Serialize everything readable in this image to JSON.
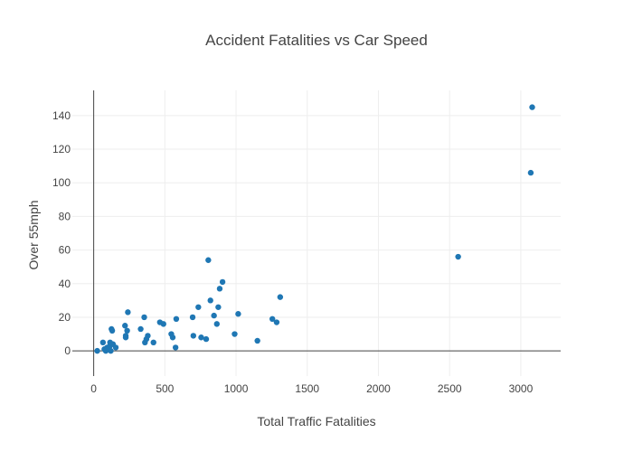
{
  "chart_data": {
    "type": "scatter",
    "title": "Accident Fatalities vs Car Speed",
    "xlabel": "Total Traffic Fatalities",
    "ylabel": "Over 55mph",
    "xlim": [
      -150,
      3280
    ],
    "ylim": [
      -15,
      155
    ],
    "xticks": [
      0,
      500,
      1000,
      1500,
      2000,
      2500,
      3000
    ],
    "yticks": [
      0,
      20,
      40,
      60,
      80,
      100,
      120,
      140
    ],
    "grid": true,
    "color": "#1f77b4",
    "points": [
      {
        "x": 25,
        "y": 0
      },
      {
        "x": 65,
        "y": 5
      },
      {
        "x": 75,
        "y": 1
      },
      {
        "x": 85,
        "y": 0
      },
      {
        "x": 95,
        "y": 2
      },
      {
        "x": 105,
        "y": 1
      },
      {
        "x": 115,
        "y": 5
      },
      {
        "x": 115,
        "y": 3
      },
      {
        "x": 120,
        "y": 0
      },
      {
        "x": 125,
        "y": 13
      },
      {
        "x": 130,
        "y": 12
      },
      {
        "x": 135,
        "y": 4
      },
      {
        "x": 155,
        "y": 2
      },
      {
        "x": 220,
        "y": 15
      },
      {
        "x": 225,
        "y": 9
      },
      {
        "x": 225,
        "y": 8
      },
      {
        "x": 235,
        "y": 12
      },
      {
        "x": 240,
        "y": 23
      },
      {
        "x": 330,
        "y": 13
      },
      {
        "x": 355,
        "y": 20
      },
      {
        "x": 360,
        "y": 5
      },
      {
        "x": 370,
        "y": 7
      },
      {
        "x": 380,
        "y": 9
      },
      {
        "x": 420,
        "y": 5
      },
      {
        "x": 465,
        "y": 17
      },
      {
        "x": 490,
        "y": 16
      },
      {
        "x": 545,
        "y": 10
      },
      {
        "x": 555,
        "y": 8
      },
      {
        "x": 575,
        "y": 2
      },
      {
        "x": 580,
        "y": 19
      },
      {
        "x": 695,
        "y": 20
      },
      {
        "x": 700,
        "y": 9
      },
      {
        "x": 735,
        "y": 26
      },
      {
        "x": 755,
        "y": 8
      },
      {
        "x": 790,
        "y": 7
      },
      {
        "x": 805,
        "y": 54
      },
      {
        "x": 820,
        "y": 30
      },
      {
        "x": 845,
        "y": 21
      },
      {
        "x": 865,
        "y": 16
      },
      {
        "x": 875,
        "y": 26
      },
      {
        "x": 885,
        "y": 37
      },
      {
        "x": 905,
        "y": 41
      },
      {
        "x": 990,
        "y": 10
      },
      {
        "x": 1015,
        "y": 22
      },
      {
        "x": 1150,
        "y": 6
      },
      {
        "x": 1255,
        "y": 19
      },
      {
        "x": 1285,
        "y": 17
      },
      {
        "x": 1310,
        "y": 32
      },
      {
        "x": 2560,
        "y": 56
      },
      {
        "x": 3070,
        "y": 106
      },
      {
        "x": 3080,
        "y": 145
      }
    ]
  }
}
